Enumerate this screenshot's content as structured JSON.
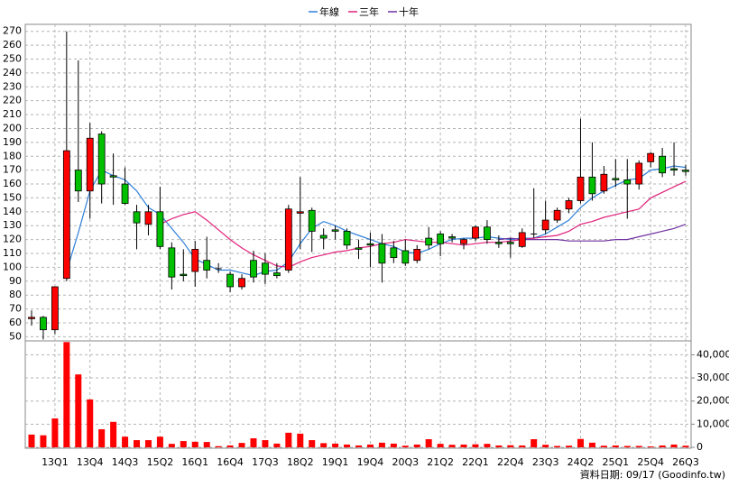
{
  "chart_data": {
    "type": "candlestick",
    "categories": [
      null,
      null,
      "13Q1",
      null,
      null,
      "13Q4",
      null,
      null,
      "14Q3",
      null,
      null,
      "15Q2",
      null,
      null,
      "16Q1",
      null,
      null,
      "16Q4",
      null,
      null,
      "17Q3",
      null,
      null,
      "18Q2",
      null,
      null,
      "19Q1",
      null,
      null,
      "19Q4",
      null,
      null,
      "20Q3",
      null,
      null,
      "21Q2",
      null,
      null,
      "22Q1",
      null,
      null,
      "22Q4",
      null,
      null,
      "23Q3",
      null,
      null,
      "24Q2",
      null,
      null,
      "25Q1",
      null,
      null,
      "25Q4",
      null,
      null,
      "26Q3"
    ],
    "open": [
      63,
      64,
      55,
      92,
      170,
      155,
      196,
      166,
      160,
      140,
      131,
      140,
      114,
      95,
      97,
      105,
      99,
      95,
      86,
      105,
      103,
      96,
      98,
      139,
      141,
      123,
      127,
      126,
      114,
      117,
      117,
      114,
      112,
      105,
      121,
      124,
      122,
      117,
      121,
      129,
      118,
      118,
      115,
      124,
      127,
      134,
      142,
      148,
      165,
      155,
      164,
      163,
      160,
      176,
      180,
      171,
      170
    ],
    "high": [
      69,
      65,
      86,
      270,
      249,
      204,
      198,
      182,
      172,
      145,
      145,
      158,
      118,
      113,
      119,
      122,
      103,
      97,
      95,
      112,
      110,
      103,
      145,
      165,
      143,
      128,
      130,
      128,
      120,
      125,
      124,
      119,
      120,
      116,
      129,
      126,
      124,
      121,
      130,
      134,
      123,
      121,
      128,
      157,
      148,
      143,
      150,
      207,
      190,
      173,
      178,
      178,
      177,
      183,
      186,
      190,
      174
    ],
    "low": [
      58,
      48,
      52,
      90,
      147,
      135,
      146,
      145,
      145,
      113,
      123,
      113,
      84,
      90,
      86,
      92,
      96,
      82,
      84,
      89,
      88,
      92,
      96,
      113,
      111,
      113,
      120,
      113,
      106,
      100,
      89,
      103,
      101,
      103,
      113,
      108,
      118,
      113,
      119,
      117,
      114,
      107,
      114,
      121,
      124,
      132,
      139,
      146,
      148,
      153,
      158,
      135,
      156,
      172,
      165,
      166,
      166
    ],
    "close": [
      64,
      55,
      86,
      184,
      155,
      193,
      160,
      165,
      146,
      132,
      140,
      115,
      93,
      94,
      113,
      98,
      99,
      86,
      92,
      93,
      95,
      94,
      142,
      140,
      126,
      121,
      126,
      116,
      113,
      116,
      103,
      107,
      103,
      113,
      116,
      117,
      121,
      120,
      129,
      120,
      117,
      117,
      125,
      124,
      134,
      141,
      148,
      165,
      153,
      167,
      163,
      160,
      175,
      182,
      168,
      170,
      169
    ],
    "up_color": "#ff0000",
    "down_color": "#00c000",
    "series": [
      {
        "name": "年線",
        "color": "#2f7fd8",
        "values": [
          null,
          null,
          null,
          97,
          125,
          155,
          170,
          166,
          163,
          155,
          143,
          138,
          128,
          118,
          106,
          102,
          98,
          98,
          96,
          94,
          97,
          98,
          104,
          117,
          128,
          133,
          130,
          126,
          123,
          120,
          117,
          115,
          111,
          110,
          113,
          117,
          120,
          121,
          121,
          122,
          121,
          120,
          121,
          121,
          124,
          129,
          134,
          143,
          150,
          155,
          159,
          163,
          164,
          170,
          171,
          173,
          172
        ]
      },
      {
        "name": "三年",
        "color": "#e0207a",
        "values": [
          null,
          null,
          null,
          null,
          null,
          null,
          null,
          null,
          null,
          null,
          null,
          131,
          135,
          138,
          140,
          134,
          127,
          120,
          114,
          109,
          105,
          101,
          100,
          104,
          107,
          109,
          111,
          112,
          114,
          115,
          117,
          118,
          120,
          119,
          118,
          118,
          117,
          116,
          117,
          118,
          118,
          119,
          120,
          121,
          122,
          123,
          126,
          131,
          133,
          136,
          138,
          140,
          142,
          150,
          154,
          158,
          162
        ]
      },
      {
        "name": "十年",
        "color": "#7030a0",
        "values": [
          null,
          null,
          null,
          null,
          null,
          null,
          null,
          null,
          null,
          null,
          null,
          null,
          null,
          null,
          null,
          null,
          null,
          null,
          null,
          null,
          null,
          null,
          null,
          null,
          null,
          null,
          null,
          null,
          null,
          null,
          null,
          null,
          null,
          null,
          null,
          null,
          null,
          null,
          null,
          null,
          120,
          121,
          120,
          120,
          120,
          120,
          119,
          119,
          119,
          119,
          120,
          120,
          122,
          124,
          126,
          128,
          131
        ]
      }
    ],
    "ylim": [
      47,
      275
    ],
    "yticks": [
      50,
      60,
      70,
      80,
      90,
      100,
      110,
      120,
      130,
      140,
      150,
      160,
      170,
      180,
      190,
      200,
      210,
      220,
      230,
      240,
      250,
      260,
      270
    ],
    "volume": {
      "values": [
        5500,
        5200,
        12500,
        45500,
        31500,
        20700,
        7800,
        11000,
        4600,
        3100,
        3100,
        4600,
        1500,
        2700,
        2400,
        2300,
        500,
        800,
        1900,
        3900,
        3100,
        1600,
        6300,
        5900,
        3100,
        1800,
        1600,
        1200,
        800,
        1200,
        2000,
        1600,
        700,
        1200,
        3500,
        1500,
        1100,
        1200,
        1300,
        1500,
        800,
        900,
        800,
        3500,
        1100,
        600,
        700,
        3600,
        2000,
        700,
        800,
        600,
        600,
        400,
        800,
        1200,
        700
      ],
      "color": "#ff0000",
      "ylim": [
        0,
        46000
      ],
      "yticks": [
        0,
        {
          "value": 10000,
          "label": "10,000"
        },
        {
          "value": 20000,
          "label": "20,000"
        },
        {
          "value": 30000,
          "label": "30,000"
        },
        {
          "value": 40000,
          "label": "40,000"
        }
      ]
    },
    "grid": true,
    "footer": "資料日期: 09/17 (Goodinfo.tw)"
  }
}
